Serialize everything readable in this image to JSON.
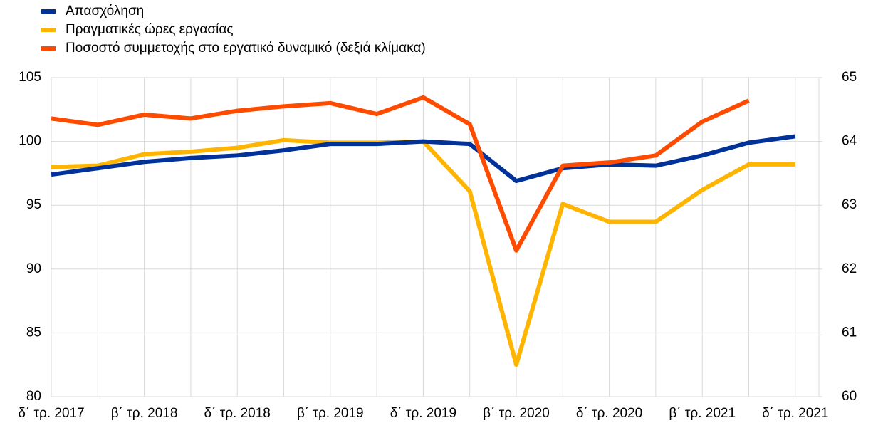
{
  "chart_data": {
    "type": "line",
    "categories": [
      "δ΄ τρ. 2017",
      null,
      "β΄ τρ. 2018",
      null,
      "δ΄ τρ. 2018",
      null,
      "β΄ τρ. 2019",
      null,
      "δ΄ τρ. 2019",
      null,
      "β΄ τρ. 2020",
      null,
      "δ΄ τρ. 2020",
      null,
      "β΄ τρ. 2021",
      null,
      "δ΄ τρ. 2021"
    ],
    "series": [
      {
        "name": "Απασχόληση",
        "color": "#003299",
        "values": [
          97.4,
          97.9,
          98.4,
          98.7,
          98.9,
          99.3,
          99.8,
          99.8,
          100.0,
          99.8,
          96.9,
          97.9,
          98.2,
          98.1,
          98.9,
          99.9,
          100.4
        ]
      },
      {
        "name": "Πραγματικές ώρες εργασίας",
        "color": "#ffb400",
        "values": [
          98.0,
          98.1,
          99.0,
          99.2,
          99.5,
          100.1,
          99.9,
          99.9,
          100.0,
          96.1,
          82.5,
          95.1,
          93.7,
          93.7,
          96.2,
          98.2,
          98.2
        ]
      },
      {
        "name": "Ποσοστό συμμετοχής στο εργατικό δυναμικό (δεξιά κλίμακα)",
        "color": "#ff4b00",
        "axis": "y2",
        "values": [
          64.36,
          64.26,
          64.42,
          64.36,
          64.48,
          64.55,
          64.6,
          64.43,
          64.69,
          64.27,
          62.29,
          63.62,
          63.67,
          63.78,
          64.31,
          64.64,
          null
        ]
      }
    ],
    "ylim": [
      80,
      105
    ],
    "yticks": [
      80,
      85,
      90,
      95,
      100,
      105
    ],
    "y2lim": [
      60,
      65
    ],
    "y2ticks": [
      60,
      61,
      62,
      63,
      64,
      65
    ],
    "grid": true
  }
}
